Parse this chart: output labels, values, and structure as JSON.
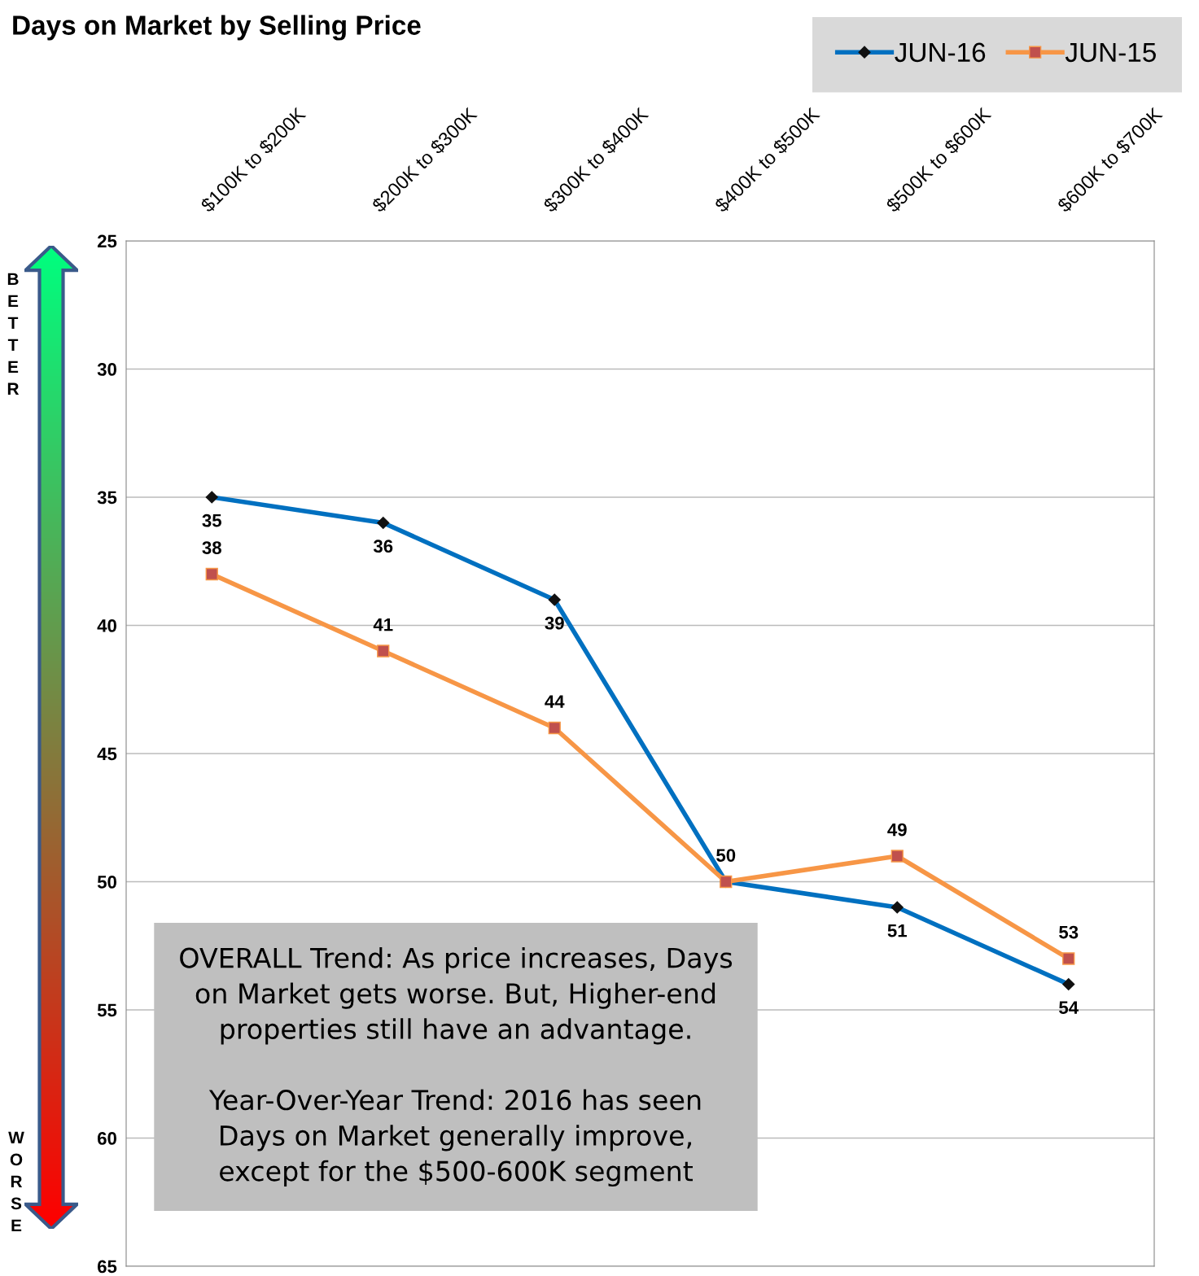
{
  "chart_data": {
    "type": "line",
    "title": "Days on Market by Selling Price",
    "categories": [
      "$100K to $200K",
      "$200K to $300K",
      "$300K to $400K",
      "$400K to $500K",
      "$500K to $600K",
      "$600K to $700K"
    ],
    "series": [
      {
        "name": "JUN-16",
        "color": "#0070c0",
        "marker": "diamond",
        "values": [
          35,
          36,
          39,
          50,
          51,
          54
        ],
        "value_labels": [
          "35",
          "36",
          "39",
          null,
          "51",
          "54"
        ]
      },
      {
        "name": "JUN-15",
        "color": "#f79646",
        "marker": "square",
        "values": [
          38,
          41,
          44,
          50,
          49,
          53
        ],
        "value_labels": [
          "38",
          "41",
          "44",
          "50",
          "49",
          "53"
        ]
      }
    ],
    "ylim": [
      65,
      25
    ],
    "yticks": [
      25,
      30,
      35,
      40,
      45,
      50,
      55,
      60,
      65
    ],
    "grid": "y",
    "legend": "top right",
    "annotations": [
      "BETTER",
      "WORSE",
      "OVERALL Trend: As price increases, Days\non Market gets worse. But, Higher-end\nproperties still have an advantage.\n\nYear-Over-Year Trend: 2016 has seen\nDays on Market generally improve,\nexcept for the $500-600K segment"
    ]
  }
}
